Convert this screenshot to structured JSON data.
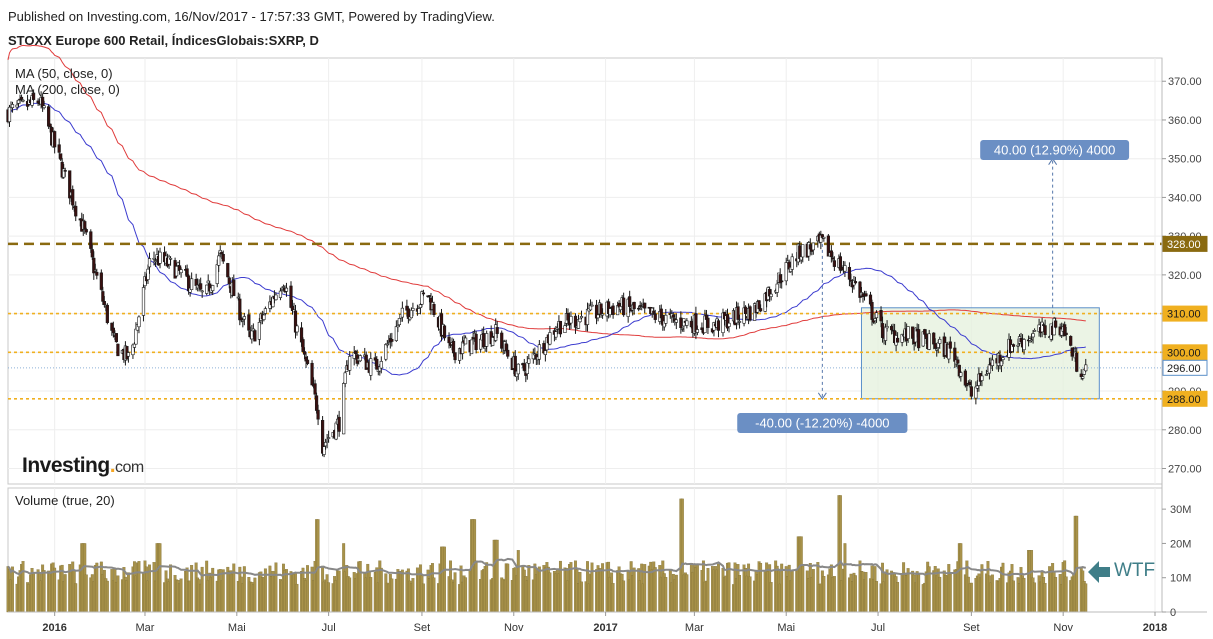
{
  "header": {
    "published": "Published on Investing.com, 16/Nov/2017 - 17:57:33 GMT, Powered by TradingView.",
    "instrument": "STOXX Europe 600 Retail, ÍndicesGlobais:SXRP, D"
  },
  "indicators": {
    "ma50": "MA (50, close, 0)",
    "ma200": "MA (200, close, 0)",
    "volume": "Volume (true, 20)"
  },
  "logo": {
    "brand": "Investing",
    "suffix": "com"
  },
  "annotation_wtf": "WTF",
  "colors": {
    "up_candle": "#ffffff",
    "down_candle": "#3a1010",
    "ma50": "#3c3ccf",
    "ma200": "#e03c3c",
    "resistance_dashed": "#8a6a10",
    "level_dotted": "#f0b020",
    "volume_bar": "#a8924a",
    "volume_ma": "#888888",
    "box_fill": "#e4f0dc",
    "box_stroke": "#5b8fc9",
    "label_bg": "#6b8fc4",
    "wtf_arrow": "#3f7e88"
  },
  "chart_data": [
    {
      "type": "candlestick",
      "title": "STOXX Europe 600 Retail, ÍndicesGlobais:SXRP, D",
      "x_ticks": [
        "2016",
        "Mar",
        "Mai",
        "Jul",
        "Set",
        "Nov",
        "2017",
        "Mar",
        "Mai",
        "Jul",
        "Set",
        "Nov",
        "2018"
      ],
      "y_ticks": [
        "270.00",
        "280.00",
        "290.00",
        "300.00",
        "310.00",
        "320.00",
        "330.00",
        "340.00",
        "350.00",
        "360.00",
        "370.00"
      ],
      "ylim": [
        266,
        376
      ],
      "price_path": [
        {
          "date": "2015-12",
          "close": 362
        },
        {
          "date": "2015-12-22",
          "close": 365
        },
        {
          "date": "2016-01-08",
          "close": 345
        },
        {
          "date": "2016-01-20",
          "close": 332
        },
        {
          "date": "2016-02-10",
          "close": 302
        },
        {
          "date": "2016-02-20",
          "close": 298
        },
        {
          "date": "2016-03-05",
          "close": 325
        },
        {
          "date": "2016-03-20",
          "close": 322
        },
        {
          "date": "2016-04-10",
          "close": 314
        },
        {
          "date": "2016-04-20",
          "close": 325
        },
        {
          "date": "2016-05-10",
          "close": 303
        },
        {
          "date": "2016-06-01",
          "close": 319
        },
        {
          "date": "2016-06-24",
          "close": 285
        },
        {
          "date": "2016-06-27",
          "close": 276
        },
        {
          "date": "2016-07-08",
          "close": 282
        },
        {
          "date": "2016-07-15",
          "close": 300
        },
        {
          "date": "2016-08-01",
          "close": 296
        },
        {
          "date": "2016-08-20",
          "close": 310
        },
        {
          "date": "2016-09-05",
          "close": 315
        },
        {
          "date": "2016-09-20",
          "close": 300
        },
        {
          "date": "2016-10-20",
          "close": 305
        },
        {
          "date": "2016-11-05",
          "close": 294
        },
        {
          "date": "2016-11-30",
          "close": 307
        },
        {
          "date": "2017-01-10",
          "close": 312
        },
        {
          "date": "2017-02-15",
          "close": 308
        },
        {
          "date": "2017-03-15",
          "close": 307
        },
        {
          "date": "2017-04-10",
          "close": 311
        },
        {
          "date": "2017-05-10",
          "close": 326
        },
        {
          "date": "2017-05-25",
          "close": 328
        },
        {
          "date": "2017-06-15",
          "close": 318
        },
        {
          "date": "2017-07-05",
          "close": 305
        },
        {
          "date": "2017-07-25",
          "close": 304
        },
        {
          "date": "2017-08-20",
          "close": 300
        },
        {
          "date": "2017-09-01",
          "close": 289
        },
        {
          "date": "2017-09-12",
          "close": 296
        },
        {
          "date": "2017-09-28",
          "close": 302
        },
        {
          "date": "2017-10-15",
          "close": 305
        },
        {
          "date": "2017-10-31",
          "close": 307
        },
        {
          "date": "2017-11-10",
          "close": 297
        },
        {
          "date": "2017-11-16",
          "close": 295
        }
      ],
      "levels": [
        {
          "label": "328.00",
          "value": 328,
          "style": "dashed"
        },
        {
          "label": "310.00",
          "value": 310,
          "style": "dotted"
        },
        {
          "label": "300.00",
          "value": 300,
          "style": "dotted"
        },
        {
          "label": "296.00",
          "value": 296,
          "style": "current"
        },
        {
          "label": "288.00",
          "value": 288,
          "style": "dotted"
        }
      ],
      "measure_down": {
        "label": "-40.00 (-12.20%) -4000",
        "from": 328,
        "to": 288
      },
      "measure_up": {
        "label": "40.00 (12.90%) 4000",
        "from": 310,
        "to": 350
      },
      "range_box": {
        "from_date": "2017-06-20",
        "to_date": "2017-11-25",
        "top": 311.5,
        "bottom": 288
      }
    },
    {
      "type": "bar",
      "title": "Volume (true, 20)",
      "y_ticks": [
        "0",
        "10M",
        "20M",
        "30M"
      ],
      "ylim": [
        0,
        35
      ],
      "units": "M",
      "spikes": [
        {
          "date": "2016-01-20",
          "value": 20
        },
        {
          "date": "2016-03-10",
          "value": 20
        },
        {
          "date": "2016-06-24",
          "value": 27
        },
        {
          "date": "2016-07-10",
          "value": 20
        },
        {
          "date": "2016-09-15",
          "value": 19
        },
        {
          "date": "2016-10-05",
          "value": 27
        },
        {
          "date": "2016-10-20",
          "value": 21
        },
        {
          "date": "2016-11-05",
          "value": 18
        },
        {
          "date": "2017-02-20",
          "value": 33
        },
        {
          "date": "2017-05-10",
          "value": 22
        },
        {
          "date": "2017-06-05",
          "value": 34
        },
        {
          "date": "2017-06-10",
          "value": 20
        },
        {
          "date": "2017-08-25",
          "value": 20
        },
        {
          "date": "2017-10-10",
          "value": 18
        },
        {
          "date": "2017-11-10",
          "value": 28
        }
      ],
      "baseline_ma": 11
    }
  ]
}
